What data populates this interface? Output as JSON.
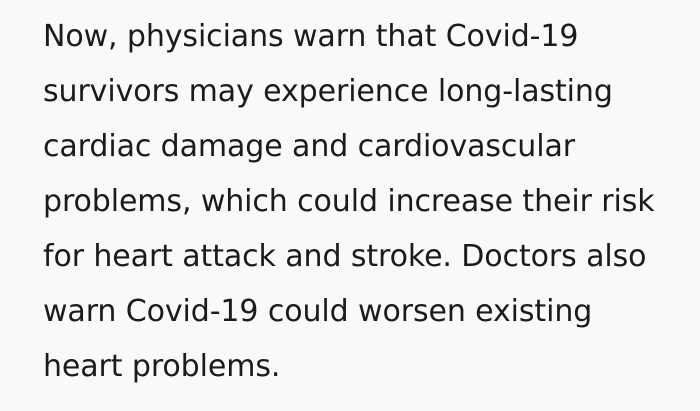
{
  "page": {
    "background_color": "#f9f9f9",
    "text_color": "#1b1b1b"
  },
  "article": {
    "paragraph": "Now, physicians warn that Covid-19 survivors may experience long-lasting cardiac damage and cardiovascular problems, which could increase their risk for heart attack and stroke. Doctors also warn Covid-19 could worsen existing heart problems.",
    "lines": [
      "Now, physicians warn that Covid-19",
      "survivors may experience long-lasting",
      "cardiac damage and cardiovascular",
      "problems, which could increase their risk",
      "for heart attack and stroke. Doctors also",
      "warn Covid-19 could worsen existing",
      "heart problems."
    ]
  }
}
